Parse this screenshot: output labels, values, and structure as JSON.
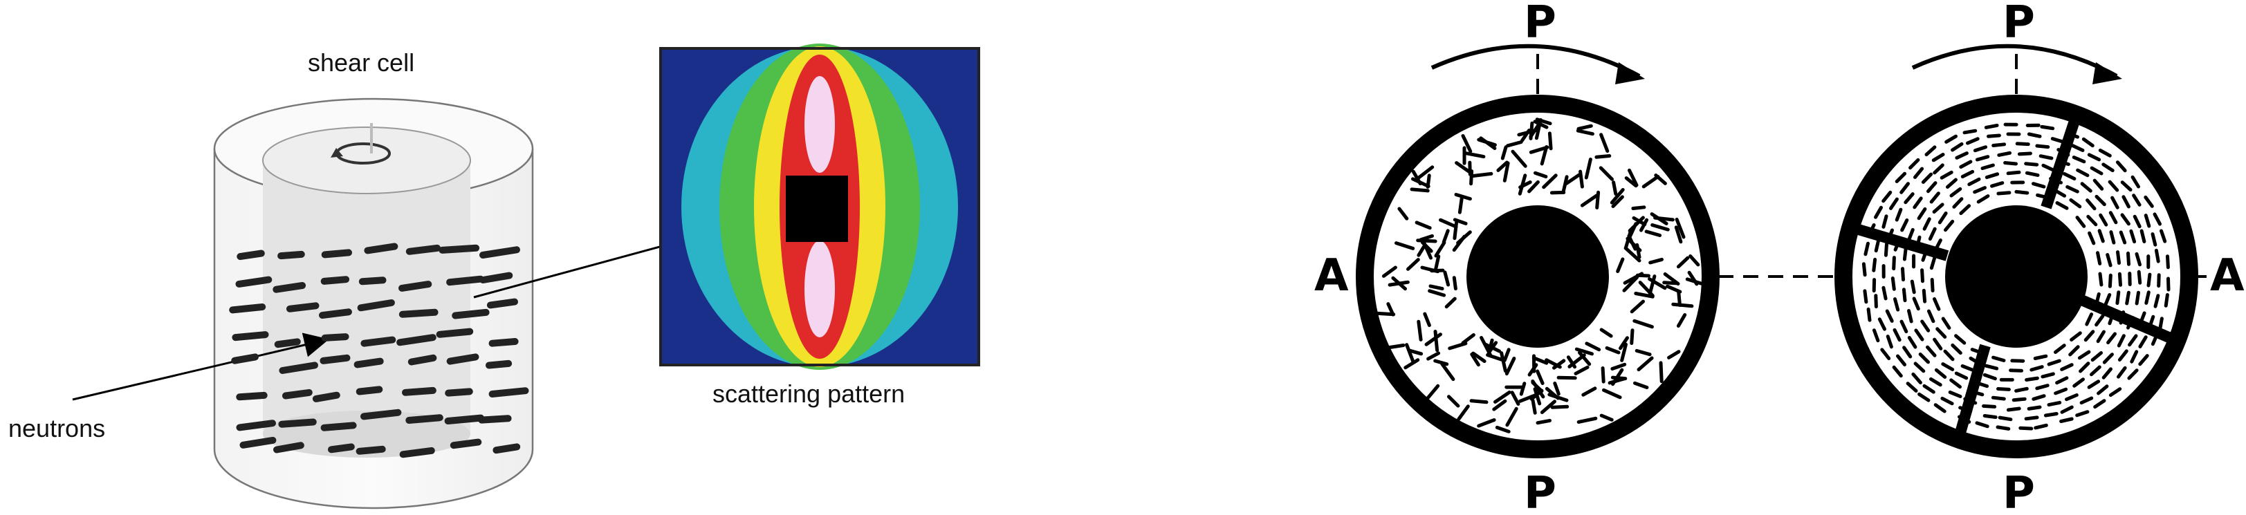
{
  "left_panel": {
    "shear_cell_label": "shear cell",
    "neutrons_label": "neutrons",
    "scattering_label": "scattering pattern"
  },
  "right_panel": {
    "left_disk": {
      "top_label": "P",
      "bottom_label": "P",
      "side_label": "A"
    },
    "right_disk": {
      "top_label": "P",
      "bottom_label": "P",
      "side_label": "A"
    }
  },
  "colors": {
    "ink": "#000000",
    "heatmap_outer": "#1a2f8a",
    "heatmap_mid": "#2bb3c8",
    "heatmap_green": "#4fbf4a",
    "heatmap_yellow": "#f2e22a",
    "heatmap_red": "#e02a2a",
    "heatmap_core": "#f4d6f0"
  }
}
